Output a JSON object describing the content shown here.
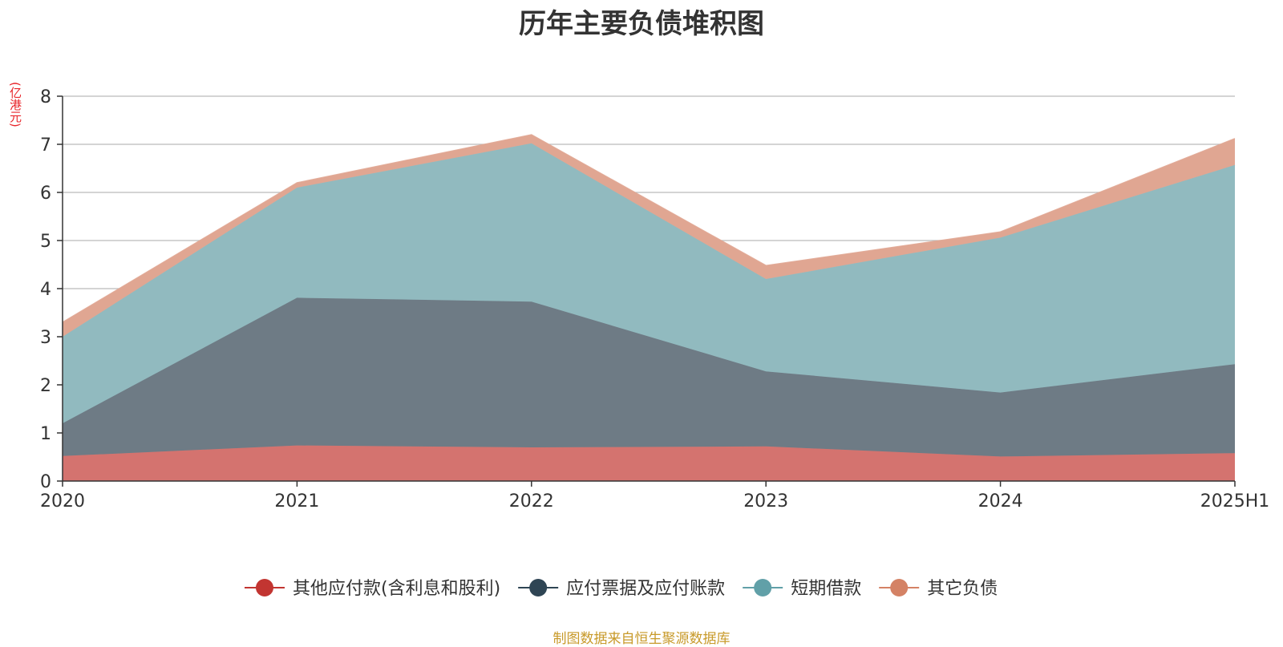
{
  "chart_data": {
    "type": "area",
    "stacked": true,
    "title": "历年主要负债堆积图",
    "unit": "(亿港元)",
    "source": "制图数据来自恒生聚源数据库",
    "x": [
      "2020",
      "2021",
      "2022",
      "2023",
      "2024",
      "2025H1"
    ],
    "ylim": [
      0,
      8
    ],
    "yticks": [
      "0",
      "1",
      "2",
      "3",
      "4",
      "5",
      "6",
      "7",
      "8"
    ],
    "grid": true,
    "legend_position": "bottom",
    "series": [
      {
        "name": "其他应付款(含利息和股利)",
        "color": "#c23531",
        "fill": "#d4736f",
        "values": [
          0.52,
          0.74,
          0.7,
          0.72,
          0.51,
          0.58
        ]
      },
      {
        "name": "应付票据及应付账款",
        "color": "#2f4554",
        "fill": "#6e7b85",
        "values": [
          0.68,
          3.07,
          3.03,
          1.56,
          1.33,
          1.85
        ]
      },
      {
        "name": "短期借款",
        "color": "#61a0a8",
        "fill": "#91babf",
        "values": [
          1.8,
          2.29,
          3.29,
          1.92,
          3.22,
          4.14
        ]
      },
      {
        "name": "其它负债",
        "color": "#d48265",
        "fill": "#e0a692",
        "values": [
          0.3,
          0.1,
          0.18,
          0.28,
          0.12,
          0.55
        ]
      }
    ]
  }
}
